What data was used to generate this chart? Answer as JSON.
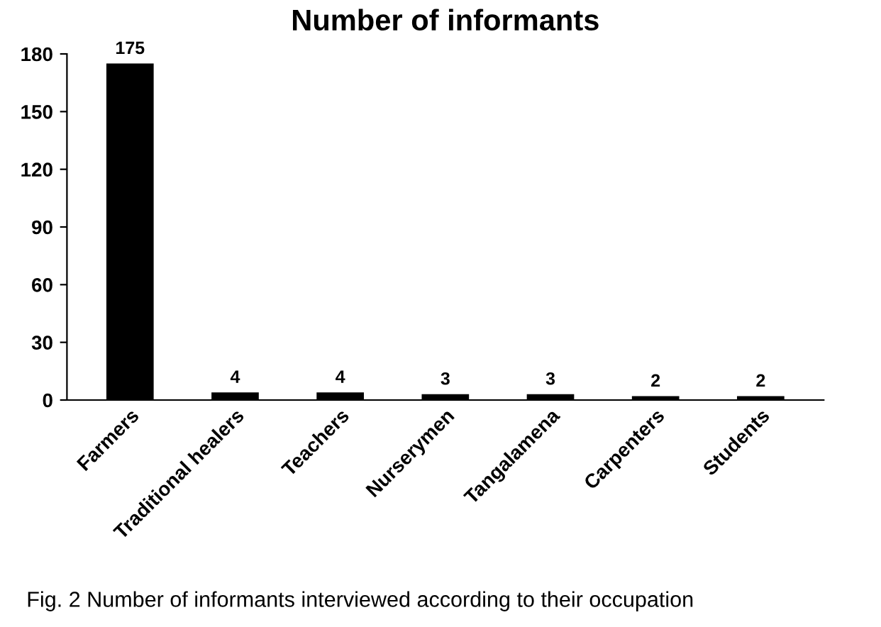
{
  "chart_data": {
    "type": "bar",
    "title": "Number of informants",
    "categories": [
      "Farmers",
      "Traditional healers",
      "Teachers",
      "Nurserymen",
      "Tangalamena",
      "Carpenters",
      "Students"
    ],
    "values": [
      175,
      4,
      4,
      3,
      3,
      2,
      2
    ],
    "color": "#000000",
    "ylim": [
      0,
      180
    ],
    "yticks": [
      0,
      30,
      60,
      90,
      120,
      150,
      180
    ],
    "grid": false,
    "data_labels": true,
    "annotations": [
      "Fig. 2 Number of informants interviewed according to their occupation"
    ]
  }
}
